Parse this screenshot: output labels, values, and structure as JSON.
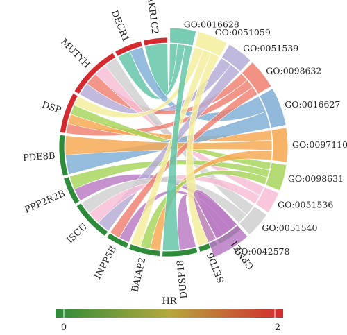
{
  "genes": [
    {
      "name": "AKR1C2",
      "hr_color": "#d42a2f"
    },
    {
      "name": "DECR1",
      "hr_color": "#d42a2f"
    },
    {
      "name": "MUTYH",
      "hr_color": "#d42a2f"
    },
    {
      "name": "DSP",
      "hr_color": "#d42a2f"
    },
    {
      "name": "PDE8B",
      "hr_color": "#2e8b3a"
    },
    {
      "name": "PPP2R2B",
      "hr_color": "#2e8b3a"
    },
    {
      "name": "ISCU",
      "hr_color": "#2e8b3a"
    },
    {
      "name": "INPP5B",
      "hr_color": "#2e8b3a"
    },
    {
      "name": "BAIAP2",
      "hr_color": "#2e8b3a"
    },
    {
      "name": "DUSP18",
      "hr_color": "#2e8b3a"
    },
    {
      "name": "SETD6",
      "hr_color": "#2e8b3a"
    },
    {
      "name": "CPNE1",
      "hr_color": "#2e8b3a"
    }
  ],
  "go_terms": [
    {
      "name": "GO:0016628",
      "color": "#5fc3a6"
    },
    {
      "name": "GO:0051059",
      "color": "#f3ee9b"
    },
    {
      "name": "GO:0051539",
      "color": "#b3abd6"
    },
    {
      "name": "GO:0098632",
      "color": "#ee7f6f"
    },
    {
      "name": "GO:0016627",
      "color": "#7fadd6"
    },
    {
      "name": "GO:0097110",
      "color": "#f6a74f"
    },
    {
      "name": "GO:0098631",
      "color": "#a6d45a"
    },
    {
      "name": "GO:0051536",
      "color": "#f7bdd6"
    },
    {
      "name": "GO:0051540",
      "color": "#cfcfcf"
    },
    {
      "name": "GO:0042578",
      "color": "#b97ac3"
    }
  ],
  "links": [
    {
      "gene": "AKR1C2",
      "go": "GO:0016628"
    },
    {
      "gene": "DECR1",
      "go": "GO:0016628"
    },
    {
      "gene": "DECR1",
      "go": "GO:0016627"
    },
    {
      "gene": "MUTYH",
      "go": "GO:0051539"
    },
    {
      "gene": "MUTYH",
      "go": "GO:0098632"
    },
    {
      "gene": "MUTYH",
      "go": "GO:0051536"
    },
    {
      "gene": "MUTYH",
      "go": "GO:0051540"
    },
    {
      "gene": "DSP",
      "go": "GO:0098632"
    },
    {
      "gene": "DSP",
      "go": "GO:0097110"
    },
    {
      "gene": "DSP",
      "go": "GO:0098631"
    },
    {
      "gene": "DSP",
      "go": "GO:0051059"
    },
    {
      "gene": "PDE8B",
      "go": "GO:0016627"
    },
    {
      "gene": "PDE8B",
      "go": "GO:0097110"
    },
    {
      "gene": "PPP2R2B",
      "go": "GO:0042578"
    },
    {
      "gene": "PPP2R2B",
      "go": "GO:0098631"
    },
    {
      "gene": "ISCU",
      "go": "GO:0051539"
    },
    {
      "gene": "ISCU",
      "go": "GO:0051536"
    },
    {
      "gene": "ISCU",
      "go": "GO:0051540"
    },
    {
      "gene": "INPP5B",
      "go": "GO:0042578"
    },
    {
      "gene": "INPP5B",
      "go": "GO:0098632"
    },
    {
      "gene": "BAIAP2",
      "go": "GO:0097110"
    },
    {
      "gene": "BAIAP2",
      "go": "GO:0098631"
    },
    {
      "gene": "BAIAP2",
      "go": "GO:0051059"
    },
    {
      "gene": "DUSP18",
      "go": "GO:0042578"
    },
    {
      "gene": "DUSP18",
      "go": "GO:0016628"
    },
    {
      "gene": "SETD6",
      "go": "GO:0051059"
    },
    {
      "gene": "CPNE1",
      "go": "GO:0042578"
    }
  ],
  "legend": {
    "title": "HR",
    "min_label": "0",
    "max_label": "2",
    "low_color": "#2e8b3a",
    "mid_color": "#b5a83c",
    "high_color": "#d42a2f"
  }
}
